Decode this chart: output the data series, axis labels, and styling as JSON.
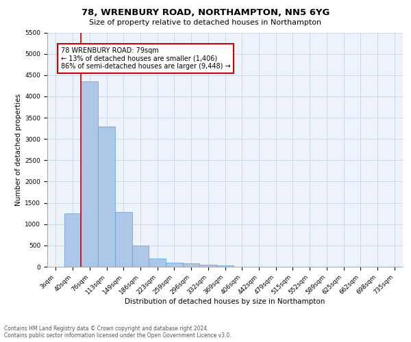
{
  "title": "78, WRENBURY ROAD, NORTHAMPTON, NN5 6YG",
  "subtitle": "Size of property relative to detached houses in Northampton",
  "xlabel": "Distribution of detached houses by size in Northampton",
  "ylabel": "Number of detached properties",
  "bar_labels": [
    "3sqm",
    "40sqm",
    "76sqm",
    "113sqm",
    "149sqm",
    "186sqm",
    "223sqm",
    "259sqm",
    "296sqm",
    "332sqm",
    "369sqm",
    "406sqm",
    "442sqm",
    "479sqm",
    "515sqm",
    "552sqm",
    "589sqm",
    "625sqm",
    "662sqm",
    "698sqm",
    "735sqm"
  ],
  "bar_values": [
    0,
    1260,
    4350,
    3300,
    1280,
    490,
    200,
    100,
    75,
    55,
    40,
    0,
    0,
    0,
    0,
    0,
    0,
    0,
    0,
    0,
    0
  ],
  "bar_color": "#aec6e8",
  "bar_edge_color": "#5a9fd4",
  "vline_color": "#cc0000",
  "annotation_text": "78 WRENBURY ROAD: 79sqm\n← 13% of detached houses are smaller (1,406)\n86% of semi-detached houses are larger (9,448) →",
  "annotation_box_color": "#ffffff",
  "annotation_box_edge": "#cc0000",
  "ylim": [
    0,
    5500
  ],
  "yticks": [
    0,
    500,
    1000,
    1500,
    2000,
    2500,
    3000,
    3500,
    4000,
    4500,
    5000,
    5500
  ],
  "background_color": "#eef2f9",
  "grid_color": "#c8d4e8",
  "footer_text": "Contains HM Land Registry data © Crown copyright and database right 2024.\nContains public sector information licensed under the Open Government Licence v3.0.",
  "title_fontsize": 9.5,
  "subtitle_fontsize": 8,
  "xlabel_fontsize": 7.5,
  "ylabel_fontsize": 7.5,
  "tick_fontsize": 6.5,
  "annotation_fontsize": 7,
  "footer_fontsize": 5.5
}
